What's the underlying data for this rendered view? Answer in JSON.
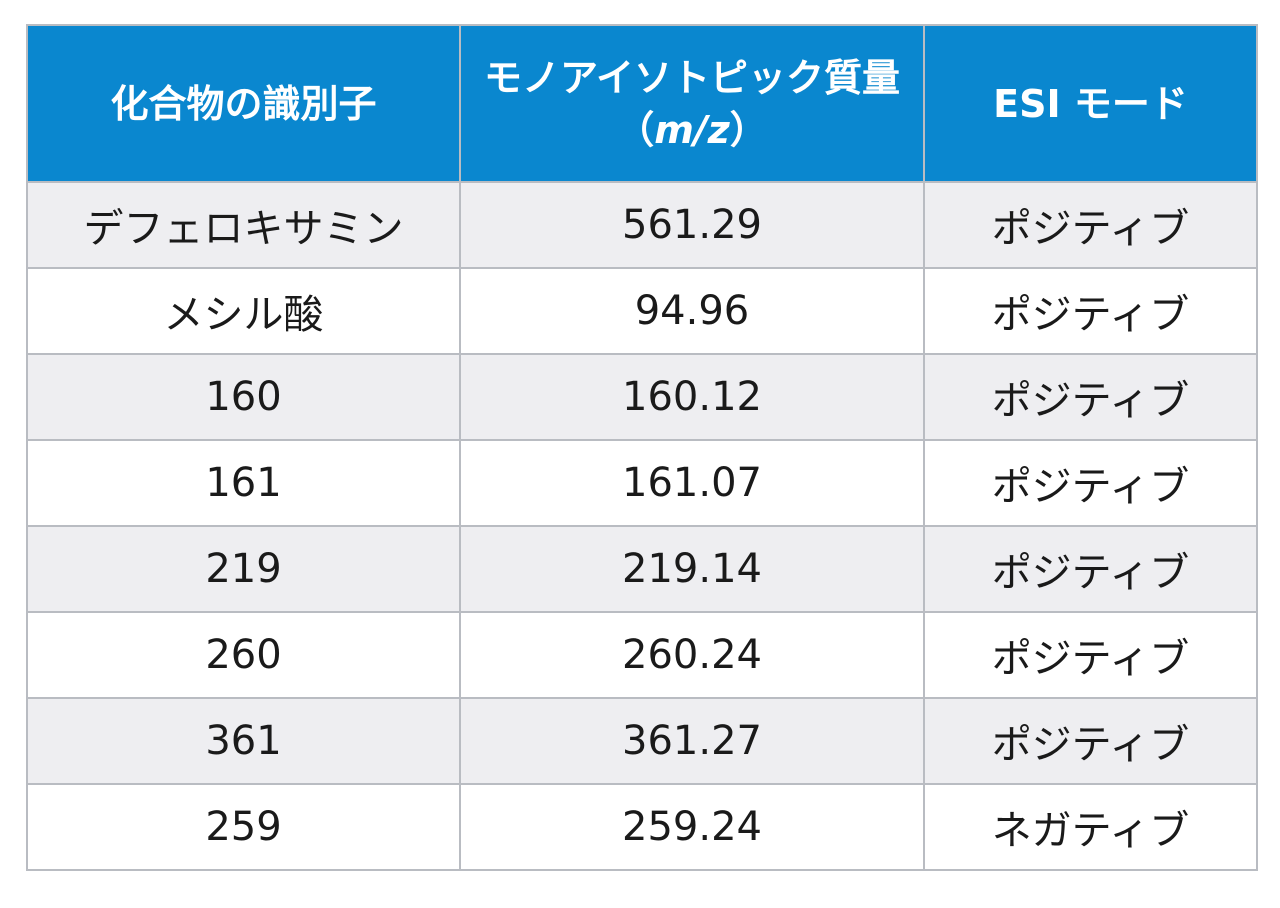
{
  "table": {
    "headers": {
      "identifier": "化合物の識別子",
      "mass_line1": "モノアイソトピック質量",
      "mass_open": "（",
      "mass_unit": "m/z",
      "mass_close": "）",
      "esi_mode": "ESI モード"
    },
    "rows": [
      {
        "id": "デフェロキサミン",
        "mass": "561.29",
        "mode": "ポジティブ"
      },
      {
        "id": "メシル酸",
        "mass": "94.96",
        "mode": "ポジティブ"
      },
      {
        "id": "160",
        "mass": "160.12",
        "mode": "ポジティブ"
      },
      {
        "id": "161",
        "mass": "161.07",
        "mode": "ポジティブ"
      },
      {
        "id": "219",
        "mass": "219.14",
        "mode": "ポジティブ"
      },
      {
        "id": "260",
        "mass": "260.24",
        "mode": "ポジティブ"
      },
      {
        "id": "361",
        "mass": "361.27",
        "mode": "ポジティブ"
      },
      {
        "id": "259",
        "mass": "259.24",
        "mode": "ネガティブ"
      }
    ],
    "colors": {
      "header_bg": "#0a87cf",
      "header_text": "#ffffff",
      "row_alt_bg": "#eeeef1",
      "border": "#b9bcc2"
    }
  }
}
